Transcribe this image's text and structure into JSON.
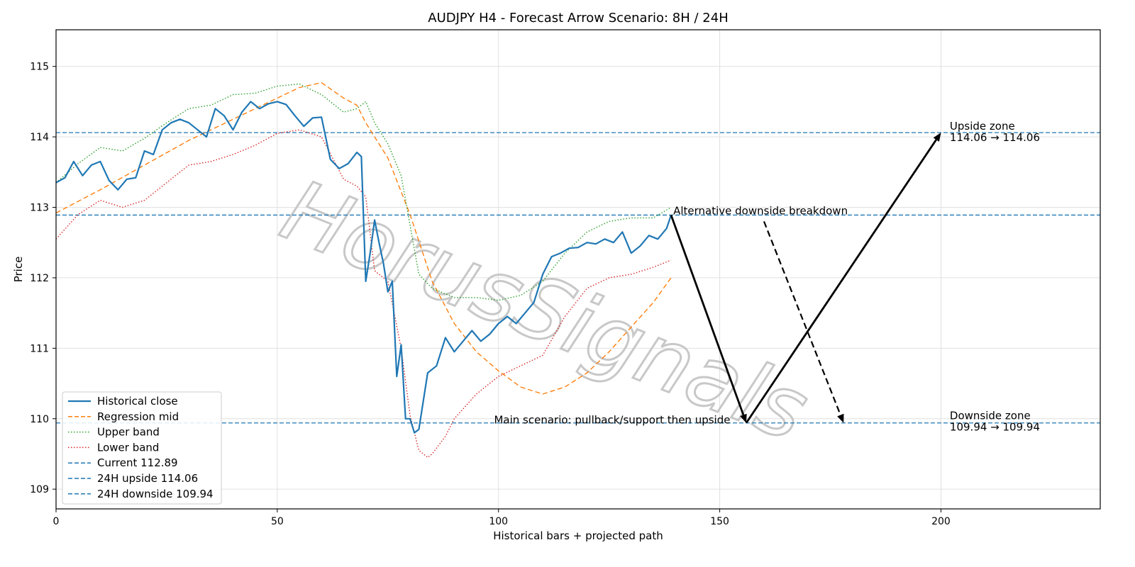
{
  "chart_data": {
    "type": "line",
    "title": "AUDJPY H4 - Forecast Arrow Scenario: 8H / 24H",
    "xlabel": "Historical bars + projected path",
    "ylabel": "Price",
    "xlim": [
      0,
      236
    ],
    "ylim": [
      108.72,
      115.52
    ],
    "xticks": [
      0,
      50,
      100,
      150,
      200
    ],
    "yticks": [
      109,
      110,
      111,
      112,
      113,
      114,
      115
    ],
    "grid": true,
    "legend_position": "bottom-left",
    "watermark": "HorusSignals",
    "series": [
      {
        "name": "Historical close",
        "color": "#1f77b4",
        "style": "solid",
        "x": [
          0,
          2,
          4,
          6,
          8,
          10,
          12,
          14,
          16,
          18,
          20,
          22,
          24,
          26,
          28,
          30,
          32,
          34,
          36,
          38,
          40,
          42,
          44,
          46,
          48,
          50,
          52,
          54,
          56,
          58,
          60,
          62,
          64,
          66,
          68,
          69,
          70,
          71,
          72,
          73,
          74,
          75,
          76,
          77,
          78,
          79,
          80,
          81,
          82,
          84,
          86,
          88,
          90,
          92,
          94,
          96,
          98,
          100,
          102,
          104,
          106,
          108,
          110,
          112,
          114,
          116,
          118,
          120,
          122,
          124,
          126,
          128,
          130,
          132,
          134,
          136,
          138,
          139
        ],
        "y": [
          113.35,
          113.42,
          113.65,
          113.45,
          113.6,
          113.65,
          113.38,
          113.25,
          113.4,
          113.42,
          113.8,
          113.75,
          114.1,
          114.2,
          114.25,
          114.2,
          114.1,
          114.0,
          114.4,
          114.3,
          114.1,
          114.35,
          114.5,
          114.4,
          114.47,
          114.5,
          114.46,
          114.3,
          114.15,
          114.27,
          114.28,
          113.68,
          113.55,
          113.62,
          113.78,
          113.72,
          111.95,
          112.35,
          112.82,
          112.5,
          112.2,
          111.8,
          111.95,
          110.6,
          111.05,
          110.0,
          110.0,
          109.8,
          109.85,
          110.65,
          110.75,
          111.15,
          110.95,
          111.1,
          111.25,
          111.1,
          111.2,
          111.35,
          111.45,
          111.35,
          111.5,
          111.65,
          112.05,
          112.3,
          112.35,
          112.42,
          112.43,
          112.5,
          112.48,
          112.55,
          112.5,
          112.65,
          112.35,
          112.45,
          112.6,
          112.55,
          112.7,
          112.89
        ]
      },
      {
        "name": "Regression mid",
        "color": "#ff7f0e",
        "style": "dashed",
        "x": [
          0,
          10,
          20,
          30,
          40,
          50,
          55,
          60,
          65,
          68,
          70,
          75,
          80,
          85,
          90,
          95,
          100,
          105,
          110,
          115,
          120,
          125,
          130,
          135,
          139
        ],
        "y": [
          112.92,
          113.25,
          113.6,
          113.95,
          114.25,
          114.55,
          114.7,
          114.77,
          114.55,
          114.45,
          114.2,
          113.7,
          112.9,
          111.95,
          111.35,
          110.95,
          110.68,
          110.45,
          110.35,
          110.45,
          110.65,
          110.95,
          111.3,
          111.65,
          112.0
        ]
      },
      {
        "name": "Upper band",
        "color": "#2ca02c",
        "style": "dotted",
        "x": [
          0,
          5,
          10,
          15,
          20,
          25,
          30,
          35,
          40,
          45,
          50,
          55,
          60,
          65,
          68,
          70,
          72,
          75,
          78,
          80,
          82,
          85,
          90,
          95,
          100,
          105,
          110,
          115,
          120,
          125,
          130,
          135,
          139
        ],
        "y": [
          113.35,
          113.62,
          113.85,
          113.8,
          113.98,
          114.2,
          114.4,
          114.45,
          114.6,
          114.62,
          114.72,
          114.75,
          114.6,
          114.35,
          114.4,
          114.5,
          114.2,
          113.9,
          113.45,
          112.75,
          112.05,
          111.85,
          111.72,
          111.72,
          111.68,
          111.75,
          111.95,
          112.35,
          112.65,
          112.8,
          112.85,
          112.85,
          113.0
        ]
      },
      {
        "name": "Lower band",
        "color": "#d62728",
        "style": "dotted",
        "x": [
          0,
          5,
          10,
          15,
          20,
          25,
          30,
          35,
          40,
          45,
          50,
          55,
          60,
          65,
          68,
          70,
          72,
          75,
          78,
          80,
          82,
          84,
          85,
          88,
          90,
          95,
          100,
          105,
          110,
          115,
          120,
          125,
          130,
          135,
          139
        ],
        "y": [
          112.55,
          112.9,
          113.1,
          113.0,
          113.1,
          113.35,
          113.6,
          113.65,
          113.75,
          113.88,
          114.05,
          114.1,
          114.0,
          113.4,
          113.3,
          113.15,
          112.1,
          111.95,
          111.0,
          110.05,
          109.55,
          109.45,
          109.5,
          109.75,
          110.0,
          110.35,
          110.6,
          110.75,
          110.9,
          111.45,
          111.85,
          112.0,
          112.05,
          112.15,
          112.25
        ]
      }
    ],
    "hlines": [
      {
        "name": "Current 112.89",
        "y": 112.89,
        "color": "#1f77b4"
      },
      {
        "name": "24H upside 114.06",
        "y": 114.06,
        "color": "#1f77b4"
      },
      {
        "name": "24H downside 109.94",
        "y": 109.94,
        "color": "#1f77b4"
      }
    ],
    "arrows": [
      {
        "from": [
          139,
          112.89
        ],
        "to": [
          156,
          109.94
        ],
        "style": "solid"
      },
      {
        "from": [
          156,
          109.94
        ],
        "to": [
          200,
          114.06
        ],
        "style": "solid"
      },
      {
        "from": [
          160,
          112.8
        ],
        "to": [
          178,
          109.94
        ],
        "style": "dashed"
      }
    ],
    "annotations": [
      {
        "text": "Alternative downside breakdown",
        "x": 139.5,
        "y": 112.89
      },
      {
        "text": "Main scenario: pullback/support then upside",
        "x": 99,
        "y": 109.94
      },
      {
        "text": "Upside zone",
        "x": 202,
        "y": 114.06
      },
      {
        "text": "114.06 → 114.06",
        "x": 202,
        "y": 114.06
      },
      {
        "text": "Downside zone",
        "x": 202,
        "y": 109.94
      },
      {
        "text": "109.94 → 109.94",
        "x": 202,
        "y": 109.94
      }
    ]
  }
}
